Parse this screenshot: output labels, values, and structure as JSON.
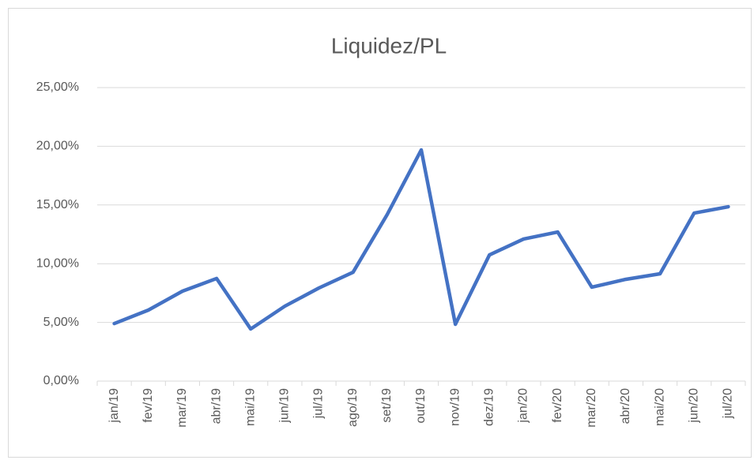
{
  "chart_data": {
    "type": "line",
    "title": "Liquidez/PL",
    "categories": [
      "jan/19",
      "fev/19",
      "mar/19",
      "abr/19",
      "mai/19",
      "jun/19",
      "jul/19",
      "ago/19",
      "set/19",
      "out/19",
      "nov/19",
      "dez/19",
      "jan/20",
      "fev/20",
      "mar/20",
      "abr/20",
      "mai/20",
      "jun/20",
      "jul/20"
    ],
    "series": [
      {
        "name": "Liquidez/PL",
        "color": "#4472c4",
        "values": [
          4.9,
          6.05,
          7.66,
          8.74,
          4.44,
          6.38,
          7.93,
          9.27,
          14.18,
          19.69,
          4.84,
          10.75,
          12.1,
          12.7,
          8.0,
          8.67,
          9.14,
          14.31,
          14.85
        ]
      }
    ],
    "ylim": [
      0,
      25
    ],
    "yticks": [
      {
        "value": 0,
        "label": "0,00%"
      },
      {
        "value": 5,
        "label": "5,00%"
      },
      {
        "value": 10,
        "label": "10,00%"
      },
      {
        "value": 15,
        "label": "15,00%"
      },
      {
        "value": 20,
        "label": "20,00%"
      },
      {
        "value": 25,
        "label": "25,00%"
      }
    ],
    "grid": true
  }
}
